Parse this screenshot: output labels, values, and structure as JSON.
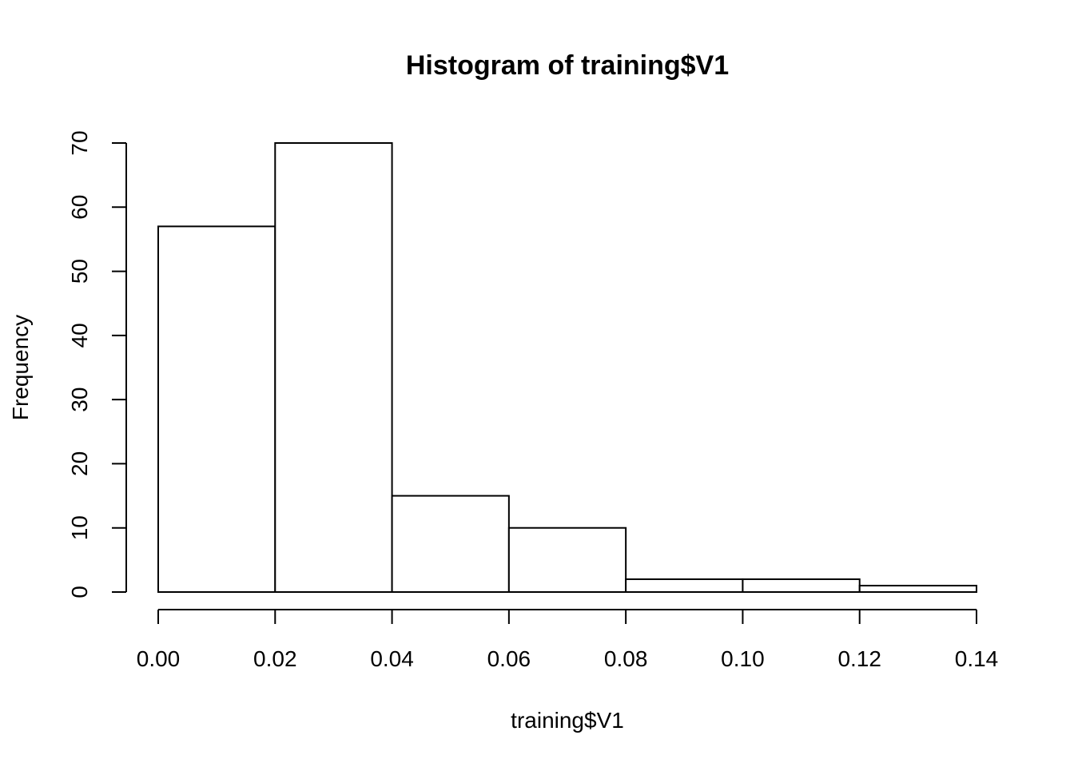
{
  "chart_data": {
    "type": "bar",
    "subtype": "histogram",
    "title": "Histogram of training$V1",
    "xlabel": "training$V1",
    "ylabel": "Frequency",
    "bins": [
      {
        "from": 0.0,
        "to": 0.02,
        "count": 57
      },
      {
        "from": 0.02,
        "to": 0.04,
        "count": 70
      },
      {
        "from": 0.04,
        "to": 0.06,
        "count": 15
      },
      {
        "from": 0.06,
        "to": 0.08,
        "count": 10
      },
      {
        "from": 0.08,
        "to": 0.1,
        "count": 2
      },
      {
        "from": 0.1,
        "to": 0.12,
        "count": 2
      },
      {
        "from": 0.12,
        "to": 0.14,
        "count": 1
      }
    ],
    "xlim": [
      0,
      0.14
    ],
    "ylim": [
      0,
      70
    ],
    "x_ticks": [
      "0.00",
      "0.02",
      "0.04",
      "0.06",
      "0.08",
      "0.10",
      "0.12",
      "0.14"
    ],
    "y_ticks": [
      "0",
      "10",
      "20",
      "30",
      "40",
      "50",
      "60",
      "70"
    ],
    "grid": false,
    "bar_fill": "#ffffff",
    "bar_stroke": "#000000"
  }
}
